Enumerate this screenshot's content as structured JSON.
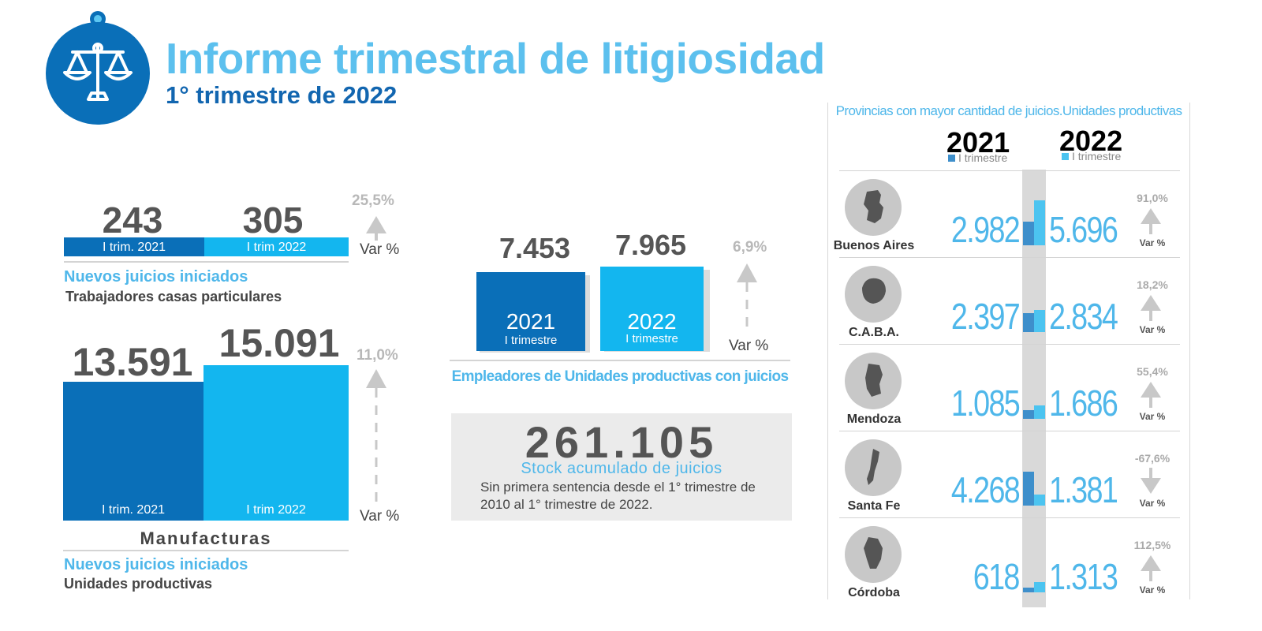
{
  "header": {
    "title": "Informe trimestral de litigiosidad",
    "subtitle": "1° trimestre de 2022",
    "icon": "scales-icon"
  },
  "colors": {
    "dark_blue": "#0a6fb8",
    "light_blue": "#13b6ef",
    "accent_text": "#4fb7ea",
    "gray": "#cdcdcd"
  },
  "casas_particulares": {
    "value_2021": "243",
    "value_2022": "305",
    "label_2021": "I trim. 2021",
    "label_2022": "I trim 2022",
    "var_pct": "25,5%",
    "var_label": "Var %",
    "title": "Nuevos juicios iniciados",
    "subtitle": "Trabajadores casas particulares"
  },
  "manufacturas": {
    "value_2021": "13.591",
    "value_2022": "15.091",
    "label_2021": "I trim. 2021",
    "label_2022": "I trim 2022",
    "var_pct": "11,0%",
    "var_label": "Var %",
    "caption": "Manufacturas",
    "title": "Nuevos juicios iniciados",
    "subtitle": "Unidades productivas"
  },
  "empleadores": {
    "value_2021": "7.453",
    "value_2022": "7.965",
    "year_2021": "2021",
    "year_2022": "2022",
    "quarter_label": "I trimestre",
    "var_pct": "6,9%",
    "var_label": "Var %",
    "title": "Empleadores de Unidades productivas con juicios"
  },
  "stock": {
    "value": "261.105",
    "title": "Stock acumulado de juicios",
    "desc_line1": "Sin primera sentencia desde el 1° trimestre de",
    "desc_line2": "2010 al  1° trimestre de 2022."
  },
  "provincias": {
    "title": "Provincias con mayor cantidad de juicios.Unidades productivas",
    "year_2021": "2021",
    "year_2022": "2022",
    "quarter_label": "I trimestre",
    "var_label": "Var %"
  },
  "chart_data": {
    "type": "bar",
    "title": "Provincias con mayor cantidad de juicios.Unidades productivas",
    "categories": [
      "Buenos Aires",
      "C.A.B.A.",
      "Mendoza",
      "Santa Fe",
      "Córdoba"
    ],
    "series": [
      {
        "name": "2021",
        "values": [
          2982,
          2397,
          1085,
          4268,
          618
        ],
        "labels": [
          "2.982",
          "2.397",
          "1.085",
          "4.268",
          "618"
        ],
        "color": "#3e8fcb"
      },
      {
        "name": "2022",
        "values": [
          5696,
          2834,
          1686,
          1381,
          1313
        ],
        "labels": [
          "5.696",
          "2.834",
          "1.686",
          "1.381",
          "1.313"
        ],
        "color": "#4cc4f0"
      }
    ],
    "var_pct": [
      "91,0%",
      "18,2%",
      "55,4%",
      "-67,6%",
      "112,5%"
    ],
    "var_direction": [
      "up",
      "up",
      "up",
      "down",
      "up"
    ],
    "ylim": [
      0,
      6000
    ]
  }
}
